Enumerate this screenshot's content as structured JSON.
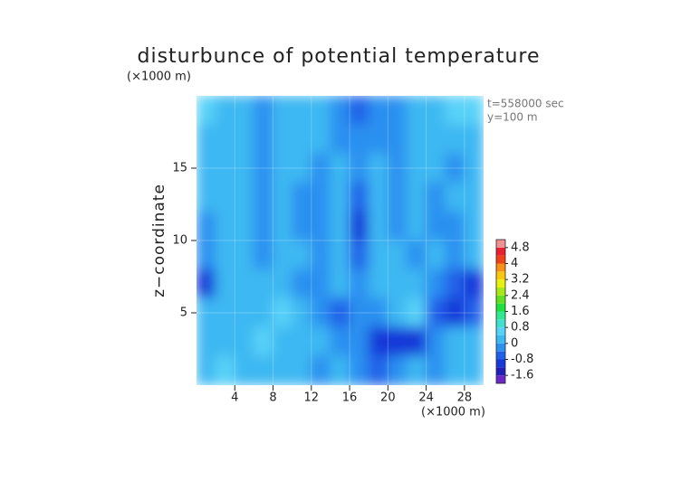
{
  "chart_data": {
    "type": "contour",
    "title": "disturbunce of potential temperature",
    "y_unit": "(×1000 m)",
    "x_unit": "(×1000 m)",
    "y_label": "z−coordinate",
    "annotations": [
      "t=558000 sec",
      "y=100 m"
    ],
    "xlim": [
      0,
      30
    ],
    "ylim": [
      0,
      20
    ],
    "xticks": [
      4,
      8,
      12,
      16,
      20,
      24,
      28
    ],
    "yticks": [
      5,
      10,
      15
    ],
    "x": [
      1,
      3,
      5,
      7,
      9,
      11,
      13,
      15,
      17,
      19,
      21,
      23,
      25,
      27,
      29
    ],
    "y": [
      19,
      17,
      15,
      13,
      11,
      9,
      7,
      5,
      3,
      1
    ],
    "values": [
      [
        0.6,
        0.2,
        0,
        -0.2,
        0,
        0.2,
        0,
        -0.3,
        -0.6,
        -0.4,
        -0.2,
        0.2,
        0.4,
        0.6,
        0.6
      ],
      [
        0.2,
        0,
        0.2,
        -0.3,
        0,
        0.3,
        0,
        -0.4,
        -0.3,
        -0.2,
        -0.4,
        0,
        0.3,
        0.2,
        0
      ],
      [
        0,
        0.2,
        0,
        -0.3,
        0.3,
        0,
        -0.2,
        0.2,
        -0.2,
        0,
        -0.3,
        0.2,
        0,
        -0.2,
        0.2
      ],
      [
        0,
        0,
        0.2,
        -0.4,
        0.4,
        -0.2,
        -0.3,
        0.3,
        -0.6,
        0.2,
        -0.2,
        0.3,
        -0.2,
        0,
        0
      ],
      [
        -0.2,
        0,
        0.3,
        -0.3,
        0.4,
        -0.2,
        -0.3,
        0.3,
        -0.8,
        0.3,
        -0.2,
        0,
        -0.3,
        -0.2,
        0
      ],
      [
        -0.4,
        0.2,
        0.3,
        -0.2,
        0.4,
        0,
        -0.3,
        0.2,
        -0.6,
        0.2,
        0,
        -0.2,
        0,
        -0.2,
        0.2
      ],
      [
        -0.8,
        0,
        0.2,
        0,
        0.3,
        -0.2,
        -0.2,
        0,
        -0.4,
        0,
        0.2,
        0.2,
        -0.2,
        -0.6,
        -1.0
      ],
      [
        0,
        0.3,
        0,
        0.2,
        0.5,
        0,
        -0.4,
        -0.6,
        -0.2,
        -0.4,
        0.4,
        0.8,
        -0.6,
        -1.2,
        -0.6
      ],
      [
        0.4,
        0,
        0.3,
        0.5,
        0,
        0.2,
        0.2,
        -0.2,
        -0.4,
        -0.8,
        -1.2,
        -0.8,
        -0.4,
        0,
        0.2
      ],
      [
        0.2,
        0.5,
        0,
        0,
        0.2,
        0,
        -0.2,
        0,
        -0.2,
        -0.6,
        -0.4,
        0,
        -0.2,
        0,
        0.2
      ]
    ],
    "colorbar": {
      "range": [
        -2.0,
        5.2
      ],
      "ticks": [
        -1.6,
        -0.8,
        0,
        0.8,
        1.6,
        2.4,
        3.2,
        4,
        4.8
      ],
      "colors": [
        "#6a28c8",
        "#2020b8",
        "#1838d8",
        "#2060e8",
        "#2c90f0",
        "#3cb8f2",
        "#58d2f8",
        "#40e0d0",
        "#30e890",
        "#20e040",
        "#60e020",
        "#a8e818",
        "#e8f010",
        "#f8c810",
        "#f89018",
        "#f04018",
        "#e82030",
        "#f09090"
      ]
    }
  }
}
